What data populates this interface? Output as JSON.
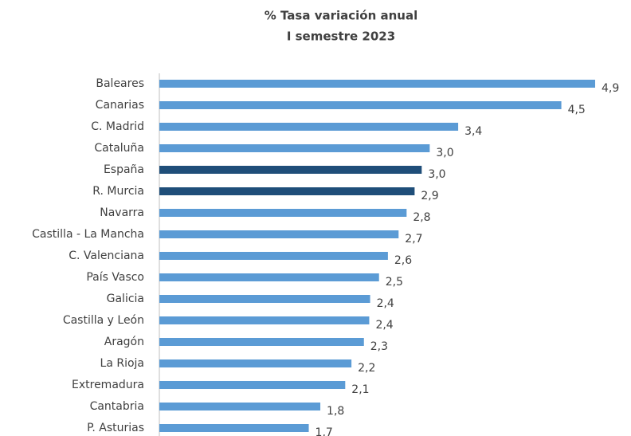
{
  "chart_data": {
    "type": "hbar",
    "title": "% Tasa variación anual",
    "subtitle": "I semestre 2023",
    "categories": [
      "Baleares",
      "Canarias",
      "C. Madrid",
      "Cataluña",
      "España",
      "R. Murcia",
      "Navarra",
      "Castilla - La Mancha",
      "C. Valenciana",
      "País Vasco",
      "Galicia",
      "Castilla y León",
      "Aragón",
      "La Rioja",
      "Extremadura",
      "Cantabria",
      "P. Asturias"
    ],
    "values": [
      4.9,
      4.52,
      3.36,
      3.04,
      2.95,
      2.87,
      2.78,
      2.69,
      2.57,
      2.47,
      2.37,
      2.36,
      2.3,
      2.16,
      2.09,
      1.81,
      1.68
    ],
    "value_labels": [
      "4,9",
      "4,5",
      "3,4",
      "3,0",
      "3,0",
      "2,9",
      "2,8",
      "2,7",
      "2,6",
      "2,5",
      "2,4",
      "2,4",
      "2,3",
      "2,2",
      "2,1",
      "1,8",
      "1,7"
    ],
    "colors": [
      "#5b9bd5",
      "#5b9bd5",
      "#5b9bd5",
      "#5b9bd5",
      "#1f4e79",
      "#1f4e79",
      "#5b9bd5",
      "#5b9bd5",
      "#5b9bd5",
      "#5b9bd5",
      "#5b9bd5",
      "#5b9bd5",
      "#5b9bd5",
      "#5b9bd5",
      "#5b9bd5",
      "#5b9bd5",
      "#5b9bd5"
    ]
  }
}
